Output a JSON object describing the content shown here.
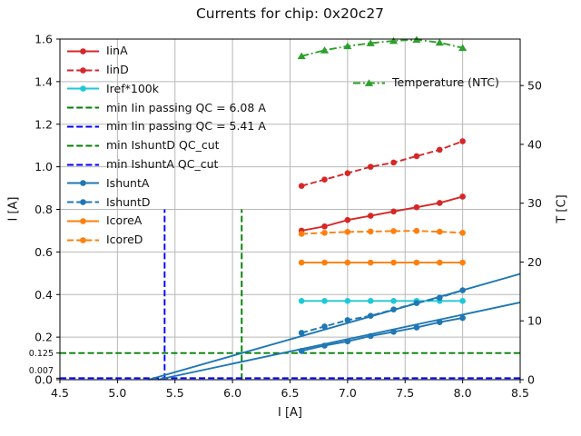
{
  "title": "Currents for chip: 0x20c27",
  "chart_data": {
    "type": "line",
    "xlabel": "I [A]",
    "ylabel_left": "I [A]",
    "ylabel_right": "T [C]",
    "xlim": [
      4.5,
      8.5
    ],
    "ylim_left": [
      0.0,
      1.6
    ],
    "ylim_right": [
      0.0,
      57.9
    ],
    "grid": true,
    "legend_position_main": "upper left",
    "legend_position_right": "center right",
    "xticks": [
      {
        "v": 4.5,
        "label": "4.5"
      },
      {
        "v": 5.0,
        "label": "5.0"
      },
      {
        "v": 5.5,
        "label": "5.5"
      },
      {
        "v": 6.0,
        "label": "6.0"
      },
      {
        "v": 6.5,
        "label": "6.5"
      },
      {
        "v": 7.0,
        "label": "7.0"
      },
      {
        "v": 7.5,
        "label": "7.5"
      },
      {
        "v": 8.0,
        "label": "8.0"
      },
      {
        "v": 8.5,
        "label": "8.5"
      }
    ],
    "yticks_left": [
      {
        "v": 0.0,
        "label": "0.0"
      },
      {
        "v": 0.2,
        "label": "0.2"
      },
      {
        "v": 0.4,
        "label": "0.4"
      },
      {
        "v": 0.6,
        "label": "0.6"
      },
      {
        "v": 0.8,
        "label": "0.8"
      },
      {
        "v": 1.0,
        "label": "1.0"
      },
      {
        "v": 1.2,
        "label": "1.2"
      },
      {
        "v": 1.4,
        "label": "1.4"
      },
      {
        "v": 1.6,
        "label": "1.6"
      }
    ],
    "yticks_left_extra": [
      {
        "v": 0.125,
        "label": "0.125",
        "dy": 0
      },
      {
        "v": 0.007,
        "label": "0.007",
        "dy": -9
      }
    ],
    "yticks_right": [
      {
        "v": 0,
        "label": "0"
      },
      {
        "v": 10,
        "label": "10"
      },
      {
        "v": 20,
        "label": "20"
      },
      {
        "v": 30,
        "label": "30"
      },
      {
        "v": 40,
        "label": "40"
      },
      {
        "v": 50,
        "label": "50"
      }
    ],
    "x": [
      6.6,
      6.8,
      7.0,
      7.2,
      7.4,
      7.6,
      7.8,
      8.0
    ],
    "series": [
      {
        "name": "IinA",
        "axis": "left",
        "color": "#d62728",
        "style": "solid",
        "marker": "circle",
        "values": [
          0.7,
          0.72,
          0.75,
          0.77,
          0.79,
          0.81,
          0.83,
          0.86
        ]
      },
      {
        "name": "IinD",
        "axis": "left",
        "color": "#d62728",
        "style": "dashed",
        "marker": "circle",
        "values": [
          0.91,
          0.94,
          0.97,
          1.0,
          1.02,
          1.05,
          1.08,
          1.12
        ]
      },
      {
        "name": "Iref*100k",
        "axis": "left",
        "color": "#1fc8d8",
        "style": "solid",
        "marker": "circle",
        "values": [
          0.37,
          0.37,
          0.37,
          0.37,
          0.37,
          0.37,
          0.37,
          0.37
        ]
      },
      {
        "name": "IshuntA",
        "axis": "left",
        "color": "#1f77b4",
        "style": "solid",
        "marker": "circle",
        "values": [
          0.135,
          0.16,
          0.18,
          0.205,
          0.225,
          0.245,
          0.27,
          0.29
        ]
      },
      {
        "name": "IshuntD",
        "axis": "left",
        "color": "#1f77b4",
        "style": "dashed",
        "marker": "circle",
        "values": [
          0.22,
          0.25,
          0.28,
          0.3,
          0.33,
          0.36,
          0.385,
          0.42
        ]
      },
      {
        "name": "IcoreA",
        "axis": "left",
        "color": "#ff7f0e",
        "style": "solid",
        "marker": "circle",
        "values": [
          0.55,
          0.55,
          0.55,
          0.55,
          0.55,
          0.55,
          0.55,
          0.55
        ]
      },
      {
        "name": "IcoreD",
        "axis": "left",
        "color": "#ff7f0e",
        "style": "dashed",
        "marker": "circle",
        "values": [
          0.685,
          0.69,
          0.694,
          0.696,
          0.698,
          0.699,
          0.695,
          0.69
        ]
      },
      {
        "name": "Temperature (NTC)",
        "axis": "right",
        "color": "#2ca02c",
        "style": "dashdot",
        "marker": "triangle",
        "values": [
          55.0,
          56.0,
          56.7,
          57.2,
          57.6,
          57.8,
          57.3,
          56.4
        ]
      }
    ],
    "fit_lines": [
      {
        "name": "IshuntA-fit",
        "color": "#1f77b4",
        "points": [
          [
            5.35,
            0.0
          ],
          [
            8.5,
            0.363
          ]
        ]
      },
      {
        "name": "IshuntD-fit",
        "color": "#1f77b4",
        "points": [
          [
            5.27,
            0.0
          ],
          [
            8.5,
            0.497
          ]
        ]
      }
    ],
    "reference_lines": [
      {
        "name": "min Iin passing QC = 6.08 A",
        "orientation": "vertical",
        "x": 6.08,
        "ymax": 0.8,
        "color": "#008000"
      },
      {
        "name": "min Iin passing QC = 5.41 A",
        "orientation": "vertical",
        "x": 5.41,
        "ymax": 0.8,
        "color": "#0000ff"
      },
      {
        "name": "min IshuntD QC_cut",
        "orientation": "horizontal",
        "y": 0.125,
        "color": "#008000"
      },
      {
        "name": "min IshuntA QC_cut",
        "orientation": "horizontal",
        "y": 0.007,
        "color": "#0000ff"
      }
    ],
    "legend_main": [
      {
        "label": "IinA",
        "color": "#d62728",
        "style": "solid",
        "marker": "circle"
      },
      {
        "label": "IinD",
        "color": "#d62728",
        "style": "dashed",
        "marker": "circle"
      },
      {
        "label": "Iref*100k",
        "color": "#1fc8d8",
        "style": "solid",
        "marker": "circle"
      },
      {
        "label": "min Iin passing QC = 6.08 A",
        "color": "#008000",
        "style": "dashed",
        "marker": "none"
      },
      {
        "label": "min Iin passing QC = 5.41 A",
        "color": "#0000ff",
        "style": "dashed",
        "marker": "none"
      },
      {
        "label": "min IshuntD QC_cut",
        "color": "#008000",
        "style": "dashed",
        "marker": "none"
      },
      {
        "label": "min IshuntA QC_cut",
        "color": "#0000ff",
        "style": "dashed",
        "marker": "none"
      },
      {
        "label": "IshuntA",
        "color": "#1f77b4",
        "style": "solid",
        "marker": "circle"
      },
      {
        "label": "IshuntD",
        "color": "#1f77b4",
        "style": "dashed",
        "marker": "circle"
      },
      {
        "label": "IcoreA",
        "color": "#ff7f0e",
        "style": "solid",
        "marker": "circle"
      },
      {
        "label": "IcoreD",
        "color": "#ff7f0e",
        "style": "dashed",
        "marker": "circle"
      }
    ],
    "legend_right": [
      {
        "label": "Temperature (NTC)",
        "color": "#2ca02c",
        "style": "dashdot",
        "marker": "triangle"
      }
    ],
    "colors": {
      "grid": "#b8b8b8",
      "spine": "#000000",
      "text": "#111111"
    }
  }
}
